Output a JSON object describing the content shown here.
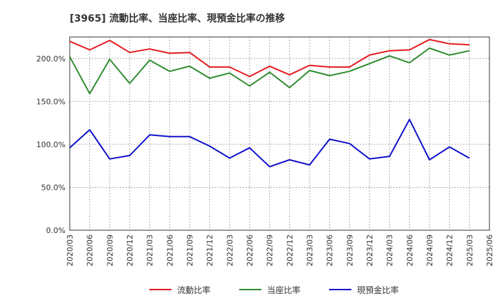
{
  "title": "[3965]  流動比率、当座比率、現預金比率の推移",
  "chart_data": {
    "type": "line",
    "title": "[3965]  流動比率、当座比率、現預金比率の推移",
    "xlabel": "",
    "ylabel": "",
    "ylim": [
      0,
      225
    ],
    "yticks": [
      0,
      50,
      100,
      150,
      200
    ],
    "ytick_labels": [
      "0.0%",
      "50.0%",
      "100.0%",
      "150.0%",
      "200.0%"
    ],
    "grid": true,
    "legend_position": "bottom",
    "categories": [
      "2020/03",
      "2020/06",
      "2020/09",
      "2020/12",
      "2021/03",
      "2021/06",
      "2021/09",
      "2021/12",
      "2022/03",
      "2022/06",
      "2022/09",
      "2022/12",
      "2023/03",
      "2023/06",
      "2023/09",
      "2023/12",
      "2024/03",
      "2024/06",
      "2024/09",
      "2024/12",
      "2025/03",
      "2025/06"
    ],
    "series": [
      {
        "name": "流動比率",
        "color": "#e41a1c",
        "values": [
          220,
          210,
          221,
          207,
          211,
          206,
          207,
          190,
          190,
          179,
          191,
          181,
          192,
          190,
          190,
          204,
          209,
          210,
          222,
          217,
          216,
          null
        ]
      },
      {
        "name": "当座比率",
        "color": "#2e8b2e",
        "values": [
          202,
          159,
          199,
          171,
          198,
          185,
          191,
          177,
          183,
          168,
          184,
          166,
          186,
          180,
          185,
          194,
          203,
          195,
          212,
          204,
          209,
          null
        ]
      },
      {
        "name": "現預金比率",
        "color": "#1010cc",
        "values": [
          96,
          117,
          83,
          87,
          111,
          109,
          109,
          98,
          84,
          96,
          74,
          82,
          76,
          106,
          101,
          83,
          86,
          129,
          82,
          97,
          84,
          null
        ]
      }
    ]
  }
}
